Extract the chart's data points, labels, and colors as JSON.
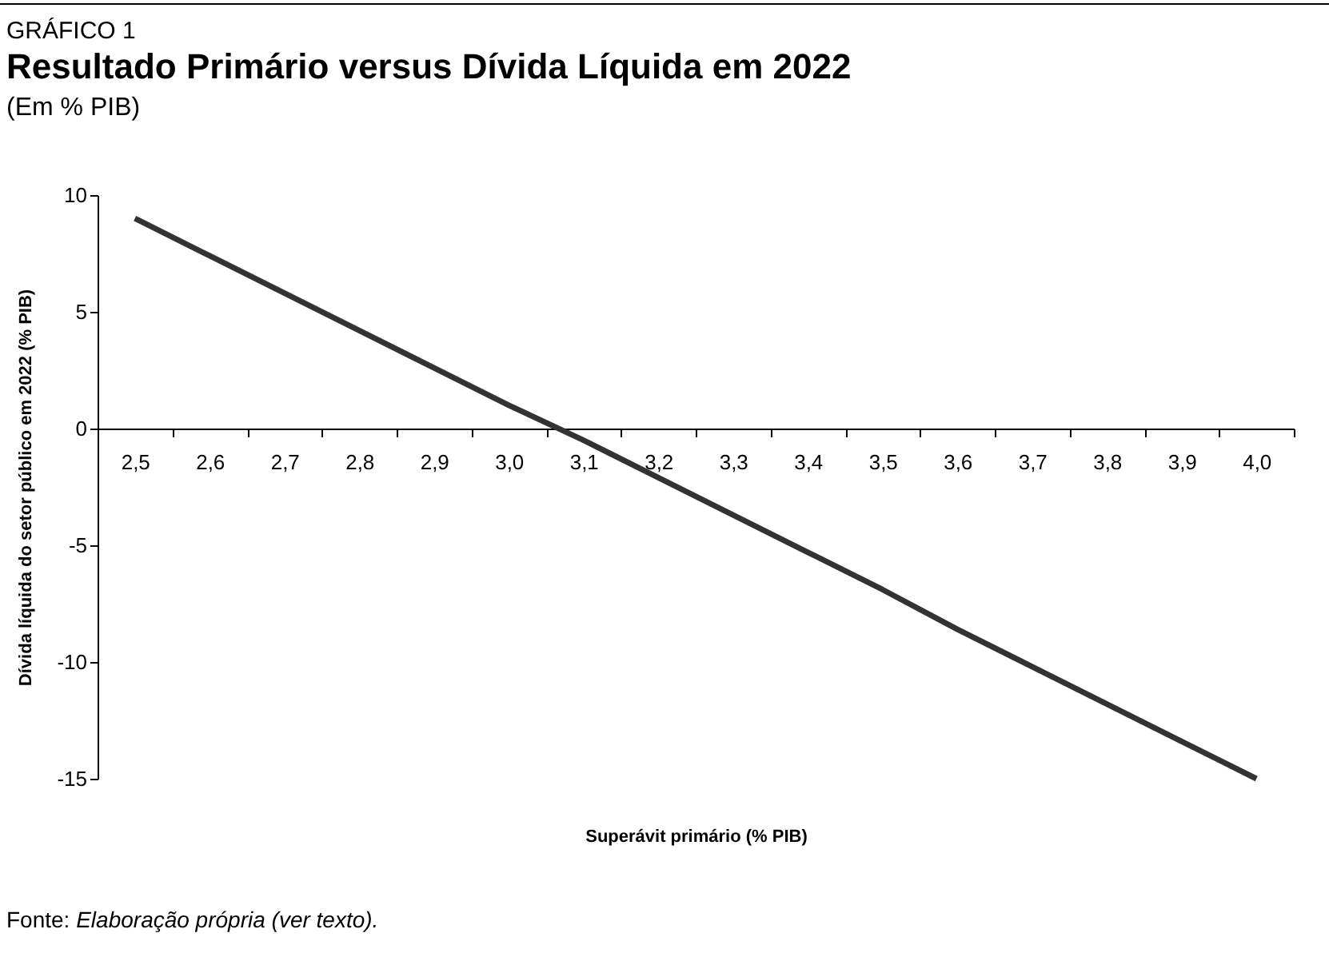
{
  "chart_data": {
    "type": "line",
    "title": "Resultado Primário versus Dívida Líquida em 2022",
    "subtitle": "(Em % PIB)",
    "xlabel": "Superávit primário (% PIB)",
    "ylabel": "Dívida líquida do setor público em 2022 (% PIB)",
    "annotations": [
      "GRÁFICO 1",
      "Fonte: Elaboração própria (ver texto)."
    ],
    "categories": [
      "2,5",
      "2,6",
      "2,7",
      "2,8",
      "2,9",
      "3,0",
      "3,1",
      "3,2",
      "3,3",
      "3,4",
      "3,5",
      "3,6",
      "3,7",
      "3,8",
      "3,9",
      "4,0"
    ],
    "series": [
      {
        "color": "#333333",
        "values": [
          9.0,
          7.4,
          5.8,
          4.2,
          2.6,
          1.0,
          -0.5,
          -2.1,
          -3.7,
          -5.3,
          -6.9,
          -8.6,
          -10.2,
          -11.8,
          -13.4,
          -15.0
        ]
      }
    ],
    "ylim": [
      -15,
      10
    ],
    "yticks": [
      -15,
      -10,
      -5,
      0,
      5,
      10
    ],
    "grid": false
  }
}
